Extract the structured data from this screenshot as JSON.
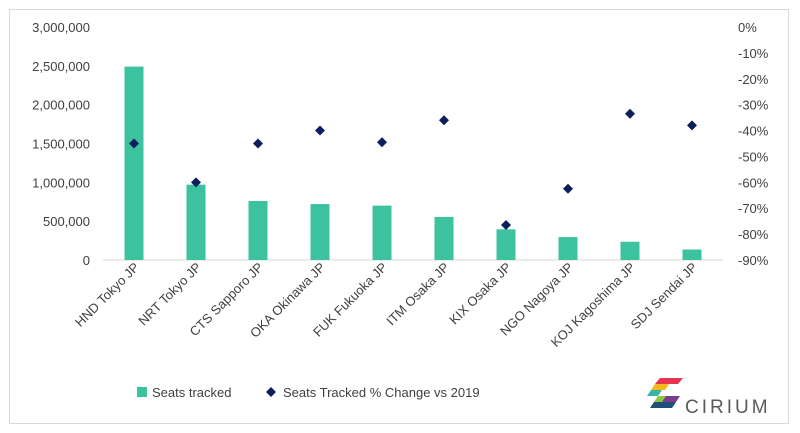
{
  "chart_data": {
    "type": "bar",
    "categories": [
      "HND Tokyo JP",
      "NRT Tokyo JP",
      "CTS Sapporo JP",
      "OKA Okinawa JP",
      "FUK Fukuoka JP",
      "ITM Osaka JP",
      "KIX Osaka JP",
      "NGO Nagoya JP",
      "KOJ Kagoshima JP",
      "SDJ Sendai JP"
    ],
    "series": [
      {
        "name": "Seats tracked",
        "type": "bar",
        "axis": "left",
        "color": "#3cc29e",
        "values": [
          2490000,
          970000,
          760000,
          720000,
          700000,
          555000,
          395000,
          295000,
          235000,
          135000
        ]
      },
      {
        "name": "Seats Tracked % Change vs 2019",
        "type": "scatter",
        "axis": "right",
        "color": "#0c1e5b",
        "values": [
          -45,
          -60,
          -45,
          -40,
          -44.5,
          -36,
          -76.5,
          -62.5,
          -33.5,
          -38
        ]
      }
    ],
    "y_left": {
      "ylim": [
        0,
        3000000
      ],
      "ticks": [
        "0",
        "500,000",
        "1,000,000",
        "1,500,000",
        "2,000,000",
        "2,500,000",
        "3,000,000"
      ]
    },
    "y_right": {
      "ylim": [
        -90,
        0
      ],
      "ticks": [
        "0%",
        "-10%",
        "-20%",
        "-30%",
        "-40%",
        "-50%",
        "-60%",
        "-70%",
        "-80%",
        "-90%"
      ]
    },
    "grid": false,
    "legend": "bottom-left"
  },
  "brand": {
    "name": "CIRIUM"
  }
}
